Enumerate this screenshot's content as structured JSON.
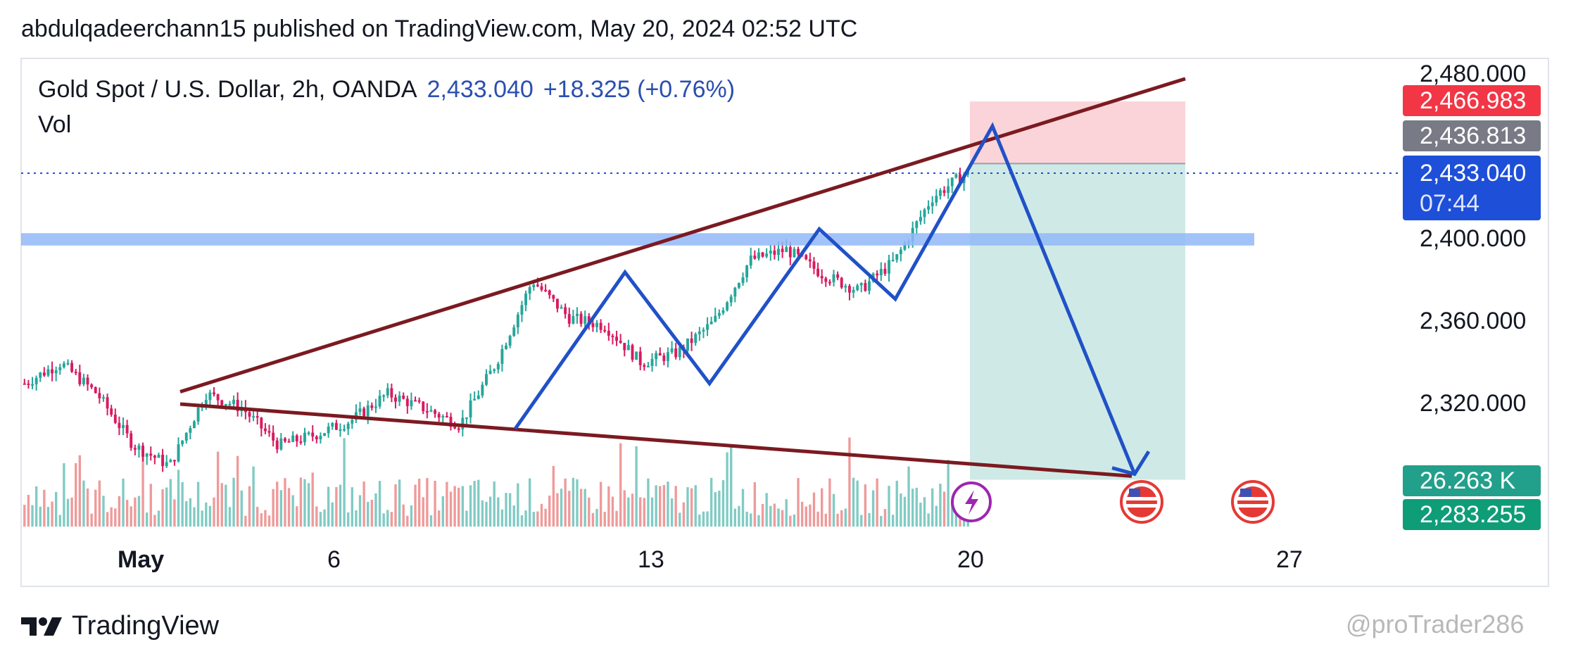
{
  "header": {
    "published_line": "abdulqadeerchann15 published on TradingView.com, May 20, 2024 02:52 UTC"
  },
  "legend": {
    "symbol": "Gold Spot / U.S. Dollar, 2h, OANDA",
    "price": "2,433.040",
    "change": "+18.325 (+0.76%)",
    "vol_label": "Vol"
  },
  "price_axis": {
    "ticks": [
      "2,480.000",
      "2,400.000",
      "2,360.000",
      "2,320.000"
    ],
    "tags": {
      "stop_loss": "2,466.983",
      "entry": "2,436.813",
      "current_price": "2,433.040",
      "countdown": "07:44",
      "volume": "26.263 K",
      "take_profit": "2,283.255"
    }
  },
  "time_axis": {
    "ticks": [
      "May",
      "6",
      "13",
      "20",
      "27"
    ]
  },
  "footer": {
    "brand": "TradingView",
    "watermark": "@proTrader286"
  },
  "colors": {
    "up": "#26a69a",
    "down": "#d81b60",
    "up_volume": "#80cbc4",
    "down_volume": "#ef9a9a",
    "pattern_line": "#2151c8",
    "trend_line": "#7b1a21",
    "support_zone": "#90b8f8",
    "profit_zone": "#cfeae6",
    "loss_zone": "#fad4d8",
    "price_tag_blue": "#1e4fd8",
    "price_tag_red": "#f23645",
    "price_tag_gray": "#787b86",
    "price_tag_green": "#22a08b"
  },
  "chart_data": {
    "type": "candlestick",
    "symbol": "Gold Spot / U.S. Dollar",
    "interval": "2h",
    "ylim": [
      2276,
      2486
    ],
    "y_ticks": [
      2480,
      2400,
      2360,
      2320
    ],
    "x_ticks": [
      "May",
      "6",
      "13",
      "20",
      "27"
    ],
    "last_price": 2433.04,
    "close_path": [
      {
        "t": "May 1",
        "close": 2330
      },
      {
        "t": "May 1",
        "close": 2340
      },
      {
        "t": "May 2",
        "close": 2325
      },
      {
        "t": "May 2",
        "close": 2300
      },
      {
        "t": "May 3",
        "close": 2290
      },
      {
        "t": "May 3",
        "close": 2325
      },
      {
        "t": "May 4",
        "close": 2318
      },
      {
        "t": "May 5",
        "close": 2300
      },
      {
        "t": "May 6",
        "close": 2305
      },
      {
        "t": "May 7",
        "close": 2312
      },
      {
        "t": "May 8",
        "close": 2325
      },
      {
        "t": "May 9",
        "close": 2318
      },
      {
        "t": "May 10",
        "close": 2310
      },
      {
        "t": "May 10",
        "close": 2340
      },
      {
        "t": "May 11",
        "close": 2380
      },
      {
        "t": "May 12",
        "close": 2362
      },
      {
        "t": "May 13",
        "close": 2358
      },
      {
        "t": "May 14",
        "close": 2340
      },
      {
        "t": "May 15",
        "close": 2345
      },
      {
        "t": "May 16",
        "close": 2360
      },
      {
        "t": "May 16",
        "close": 2390
      },
      {
        "t": "May 17",
        "close": 2395
      },
      {
        "t": "May 18",
        "close": 2383
      },
      {
        "t": "May 18",
        "close": 2375
      },
      {
        "t": "May 19",
        "close": 2390
      },
      {
        "t": "May 19",
        "close": 2420
      },
      {
        "t": "May 20",
        "close": 2433.04
      }
    ],
    "drawings": {
      "support_zone": [
        2397,
        2403
      ],
      "long_short_position": {
        "entry": 2436.813,
        "stop": 2466.983,
        "target": 2283.255
      },
      "projected_path_end": 2286,
      "trend_lines": "rising upper line and falling lower line (broadening wedge)"
    }
  }
}
